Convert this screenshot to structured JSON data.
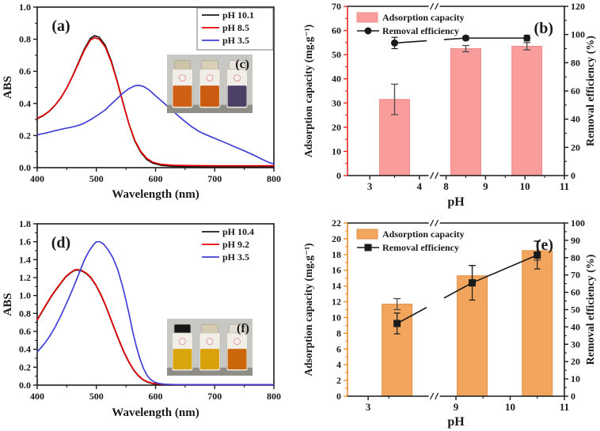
{
  "figure": {
    "background": "#ffffff"
  },
  "chart_data": [
    {
      "id": "a",
      "type": "line",
      "panel_label": "(a)",
      "xlabel": "Wavelength (nm)",
      "ylabel": "ABS",
      "xlim": [
        400,
        800
      ],
      "ylim": [
        0,
        1.0
      ],
      "xticks": [
        400,
        500,
        600,
        700,
        800
      ],
      "yticks": [
        0.0,
        0.2,
        0.4,
        0.6,
        0.8,
        1.0
      ],
      "x_minor_step": 50,
      "y_minor_step": 0.1,
      "y_decimals": 1,
      "legend_box": true,
      "legend_position": "top-right",
      "series": [
        {
          "name": "pH 10.1",
          "color": "#1a1a1a",
          "points": [
            [
              400,
              0.305
            ],
            [
              410,
              0.323
            ],
            [
              420,
              0.35
            ],
            [
              430,
              0.387
            ],
            [
              440,
              0.435
            ],
            [
              450,
              0.497
            ],
            [
              460,
              0.572
            ],
            [
              470,
              0.657
            ],
            [
              480,
              0.742
            ],
            [
              490,
              0.806
            ],
            [
              497,
              0.822
            ],
            [
              505,
              0.812
            ],
            [
              515,
              0.762
            ],
            [
              525,
              0.668
            ],
            [
              535,
              0.543
            ],
            [
              545,
              0.405
            ],
            [
              555,
              0.272
            ],
            [
              565,
              0.166
            ],
            [
              575,
              0.096
            ],
            [
              585,
              0.051
            ],
            [
              595,
              0.028
            ],
            [
              610,
              0.014
            ],
            [
              630,
              0.008
            ],
            [
              660,
              0.006
            ],
            [
              700,
              0.005
            ],
            [
              750,
              0.005
            ],
            [
              800,
              0.006
            ]
          ]
        },
        {
          "name": "pH 8.5",
          "color": "#e60000",
          "points": [
            [
              400,
              0.308
            ],
            [
              410,
              0.325
            ],
            [
              420,
              0.351
            ],
            [
              430,
              0.388
            ],
            [
              440,
              0.436
            ],
            [
              450,
              0.497
            ],
            [
              460,
              0.57
            ],
            [
              470,
              0.652
            ],
            [
              480,
              0.734
            ],
            [
              490,
              0.795
            ],
            [
              497,
              0.81
            ],
            [
              505,
              0.8
            ],
            [
              515,
              0.752
            ],
            [
              525,
              0.66
            ],
            [
              535,
              0.538
            ],
            [
              545,
              0.403
            ],
            [
              555,
              0.273
            ],
            [
              565,
              0.17
            ],
            [
              575,
              0.102
            ],
            [
              585,
              0.058
            ],
            [
              595,
              0.034
            ],
            [
              610,
              0.02
            ],
            [
              630,
              0.015
            ],
            [
              660,
              0.013
            ],
            [
              700,
              0.012
            ],
            [
              750,
              0.012
            ],
            [
              800,
              0.012
            ]
          ]
        },
        {
          "name": "pH 3.5",
          "color": "#4040d8",
          "points": [
            [
              400,
              0.205
            ],
            [
              415,
              0.216
            ],
            [
              430,
              0.23
            ],
            [
              445,
              0.243
            ],
            [
              455,
              0.25
            ],
            [
              465,
              0.258
            ],
            [
              475,
              0.27
            ],
            [
              485,
              0.288
            ],
            [
              495,
              0.31
            ],
            [
              505,
              0.334
            ],
            [
              515,
              0.36
            ],
            [
              525,
              0.395
            ],
            [
              535,
              0.43
            ],
            [
              545,
              0.465
            ],
            [
              555,
              0.492
            ],
            [
              565,
              0.51
            ],
            [
              572,
              0.513
            ],
            [
              580,
              0.505
            ],
            [
              590,
              0.482
            ],
            [
              600,
              0.448
            ],
            [
              615,
              0.4
            ],
            [
              630,
              0.35
            ],
            [
              645,
              0.302
            ],
            [
              660,
              0.258
            ],
            [
              675,
              0.222
            ],
            [
              690,
              0.198
            ],
            [
              705,
              0.175
            ],
            [
              720,
              0.152
            ],
            [
              735,
              0.128
            ],
            [
              750,
              0.105
            ],
            [
              765,
              0.08
            ],
            [
              780,
              0.052
            ],
            [
              790,
              0.035
            ],
            [
              800,
              0.022
            ]
          ]
        }
      ],
      "inset": {
        "label": "(c)",
        "label_color": "#f8f806",
        "wall_color": "#c7c7c3",
        "floor_color": "#8e8d86",
        "vials": [
          {
            "cap": "#cdc3a6",
            "liquid": "#cf5f12"
          },
          {
            "cap": "#d8cfb6",
            "liquid": "#c95c10"
          },
          {
            "cap": "#e7e3da",
            "liquid": "#4c4066"
          }
        ]
      }
    },
    {
      "id": "b",
      "type": "bar-line",
      "panel_label": "(b)",
      "xlabel": "pH",
      "left_axis": {
        "label": "Adsorption capacity (mg.g⁻¹)",
        "color": "#e62929",
        "lim": [
          0,
          70
        ],
        "tick_step": 10,
        "minor_step": 5
      },
      "right_axis": {
        "label": "Removal efficiency (%)",
        "color": "#1a1a1a",
        "lim": [
          0,
          120
        ],
        "tick_step": 20,
        "minor_step": 10
      },
      "x_segments": [
        {
          "ph": [
            2.55,
            4.3
          ],
          "frac": [
            0,
            0.4
          ]
        },
        {
          "ph": [
            7.7,
            11
          ],
          "frac": [
            0.4,
            1
          ]
        }
      ],
      "xticks": [
        3,
        4,
        8,
        9,
        10,
        11
      ],
      "x_minor_ticks": [
        3.5,
        8.5,
        9.5,
        10.5
      ],
      "break_frac": 0.4,
      "bars": {
        "color": "#f89c9c",
        "edge": "#ef8c8c",
        "error_color": "#4a4a4a",
        "ph": [
          3.5,
          8.5,
          10.05
        ],
        "values": [
          31.5,
          52.5,
          53.5
        ],
        "errors": [
          6.3,
          1.3,
          1.5
        ]
      },
      "line": {
        "color": "#1a1a1a",
        "marker": "circle",
        "ph": [
          3.5,
          8.5,
          10.05
        ],
        "values": [
          94,
          97.5,
          97.5
        ],
        "errors": [
          4,
          1.5,
          2
        ]
      },
      "legend": [
        {
          "label": "Adsorption capacity"
        },
        {
          "label": "Removal efficiency"
        }
      ]
    },
    {
      "id": "d",
      "type": "line",
      "panel_label": "(d)",
      "xlabel": "Wavelength (nm)",
      "ylabel": "ABS",
      "xlim": [
        400,
        800
      ],
      "ylim": [
        0,
        1.8
      ],
      "xticks": [
        400,
        500,
        600,
        700,
        800
      ],
      "yticks": [
        0.0,
        0.2,
        0.4,
        0.6,
        0.8,
        1.0,
        1.2,
        1.4,
        1.6,
        1.8
      ],
      "x_minor_step": 50,
      "y_minor_step": 0.1,
      "y_decimals": 1,
      "legend_box": false,
      "legend_position": "top-right",
      "series": [
        {
          "name": "pH 10.4",
          "color": "#1a1a1a",
          "points": [
            [
              400,
              0.725
            ],
            [
              408,
              0.815
            ],
            [
              416,
              0.905
            ],
            [
              424,
              0.99
            ],
            [
              432,
              1.065
            ],
            [
              440,
              1.135
            ],
            [
              448,
              1.205
            ],
            [
              456,
              1.25
            ],
            [
              463,
              1.28
            ],
            [
              468,
              1.285
            ],
            [
              475,
              1.275
            ],
            [
              483,
              1.245
            ],
            [
              491,
              1.195
            ],
            [
              499,
              1.115
            ],
            [
              507,
              1.015
            ],
            [
              515,
              0.895
            ],
            [
              523,
              0.76
            ],
            [
              531,
              0.62
            ],
            [
              539,
              0.485
            ],
            [
              547,
              0.36
            ],
            [
              555,
              0.255
            ],
            [
              563,
              0.168
            ],
            [
              571,
              0.103
            ],
            [
              579,
              0.058
            ],
            [
              587,
              0.032
            ],
            [
              595,
              0.017
            ],
            [
              605,
              0.009
            ],
            [
              620,
              0.005
            ],
            [
              650,
              0.004
            ],
            [
              700,
              0.004
            ],
            [
              800,
              0.004
            ]
          ]
        },
        {
          "name": "pH 9.2",
          "color": "#e60000",
          "points": [
            [
              400,
              0.73
            ],
            [
              408,
              0.82
            ],
            [
              416,
              0.91
            ],
            [
              424,
              0.995
            ],
            [
              432,
              1.07
            ],
            [
              440,
              1.14
            ],
            [
              448,
              1.21
            ],
            [
              456,
              1.255
            ],
            [
              463,
              1.285
            ],
            [
              468,
              1.29
            ],
            [
              475,
              1.28
            ],
            [
              483,
              1.25
            ],
            [
              491,
              1.2
            ],
            [
              499,
              1.12
            ],
            [
              507,
              1.02
            ],
            [
              515,
              0.9
            ],
            [
              523,
              0.765
            ],
            [
              531,
              0.625
            ],
            [
              539,
              0.49
            ],
            [
              547,
              0.365
            ],
            [
              555,
              0.26
            ],
            [
              563,
              0.172
            ],
            [
              571,
              0.107
            ],
            [
              579,
              0.062
            ],
            [
              587,
              0.035
            ],
            [
              595,
              0.02
            ],
            [
              605,
              0.012
            ],
            [
              620,
              0.007
            ],
            [
              650,
              0.005
            ],
            [
              700,
              0.005
            ],
            [
              800,
              0.005
            ]
          ]
        },
        {
          "name": "pH 3.5",
          "color": "#4040d8",
          "points": [
            [
              400,
              0.37
            ],
            [
              410,
              0.445
            ],
            [
              420,
              0.535
            ],
            [
              430,
              0.645
            ],
            [
              440,
              0.775
            ],
            [
              450,
              0.92
            ],
            [
              460,
              1.07
            ],
            [
              470,
              1.235
            ],
            [
              480,
              1.4
            ],
            [
              488,
              1.5
            ],
            [
              495,
              1.565
            ],
            [
              500,
              1.6
            ],
            [
              506,
              1.6
            ],
            [
              512,
              1.575
            ],
            [
              520,
              1.51
            ],
            [
              528,
              1.42
            ],
            [
              536,
              1.29
            ],
            [
              544,
              1.11
            ],
            [
              550,
              0.95
            ],
            [
              556,
              0.77
            ],
            [
              562,
              0.58
            ],
            [
              568,
              0.42
            ],
            [
              574,
              0.285
            ],
            [
              580,
              0.18
            ],
            [
              586,
              0.107
            ],
            [
              592,
              0.06
            ],
            [
              598,
              0.034
            ],
            [
              606,
              0.018
            ],
            [
              616,
              0.01
            ],
            [
              632,
              0.006
            ],
            [
              660,
              0.005
            ],
            [
              700,
              0.005
            ],
            [
              800,
              0.005
            ]
          ]
        }
      ],
      "inset": {
        "label": "(f)",
        "label_color": "#f8f806",
        "wall_color": "#c7c7c3",
        "floor_color": "#8e8d86",
        "vials": [
          {
            "cap": "#161616",
            "liquid": "#d9a50c"
          },
          {
            "cap": "#d5ccb2",
            "liquid": "#d9a10a"
          },
          {
            "cap": "#e2ded4",
            "liquid": "#cb660b"
          }
        ]
      }
    },
    {
      "id": "e",
      "type": "bar-line",
      "panel_label": "(e)",
      "xlabel": "pH",
      "left_axis": {
        "label": "Adsorption capacity (mg.g⁻¹)",
        "color": "#ed8d2a",
        "lim": [
          0,
          22
        ],
        "tick_step": 2,
        "minor_step": 1
      },
      "right_axis": {
        "label": "Removal efficiency (%)",
        "color": "#1a1a1a",
        "lim": [
          0,
          100
        ],
        "tick_step": 10,
        "minor_step": 5
      },
      "x_segments": [
        {
          "ph": [
            2.5,
            4.6
          ],
          "frac": [
            0,
            0.4
          ]
        },
        {
          "ph": [
            8.6,
            11
          ],
          "frac": [
            0.4,
            1
          ]
        }
      ],
      "xticks": [
        3,
        9,
        10,
        11
      ],
      "x_minor_ticks": [
        3.5,
        9.5,
        10.5
      ],
      "break_frac": 0.4,
      "bars": {
        "color": "#f2a55c",
        "edge": "#e2924a",
        "error_color": "#4a4a4a",
        "ph": [
          3.7,
          9.3,
          10.5
        ],
        "values": [
          11.7,
          15.3,
          18.5
        ],
        "errors": [
          0.7,
          1.3,
          1.2
        ]
      },
      "line": {
        "color": "#1a1a1a",
        "marker": "square",
        "ph": [
          3.7,
          9.3,
          10.5
        ],
        "values": [
          42,
          65.5,
          81.5
        ],
        "errors": [
          6,
          10,
          8
        ]
      },
      "legend": [
        {
          "label": "Adsorption capacity"
        },
        {
          "label": "Removal efficiency"
        }
      ]
    }
  ]
}
